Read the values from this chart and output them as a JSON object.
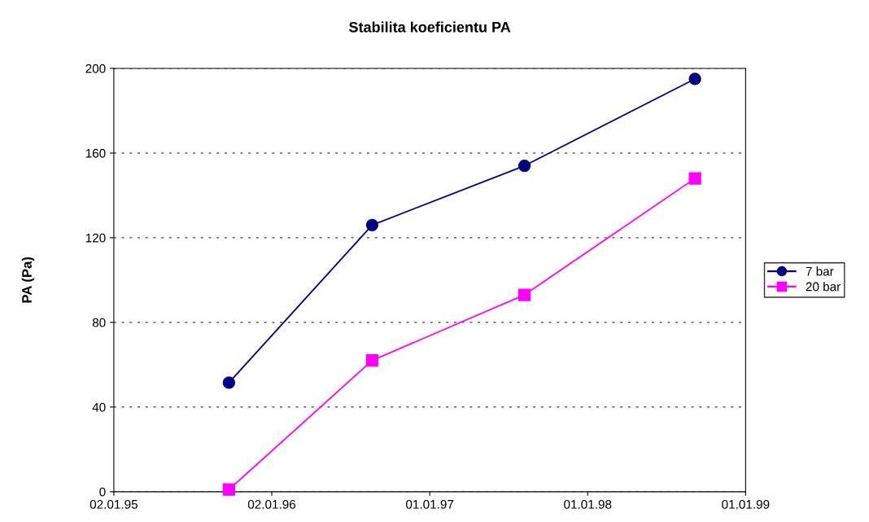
{
  "chart_data": {
    "type": "line",
    "title": "Stabilita koeficientu PA",
    "ylabel": "PA (Pa)",
    "x": [
      "1995-09-25",
      "1996-08-21",
      "1997-08-08",
      "1998-09-06"
    ],
    "series": [
      {
        "name": "7 bar",
        "color": "#000080",
        "marker": "circle",
        "values": [
          51.5,
          126,
          154,
          195
        ]
      },
      {
        "name": "20 bar",
        "color": "#ff00ff",
        "marker": "square",
        "values": [
          1,
          62,
          93,
          148
        ]
      }
    ],
    "xlim": [
      "1995-01-02",
      "1999-01-01"
    ],
    "xticks": [
      {
        "value": "1995-01-02",
        "label": "02.01.95"
      },
      {
        "value": "1996-01-02",
        "label": "02.01.96"
      },
      {
        "value": "1997-01-01",
        "label": "01.01.97"
      },
      {
        "value": "1998-01-01",
        "label": "01.01.98"
      },
      {
        "value": "1999-01-01",
        "label": "01.01.99"
      }
    ],
    "ylim": [
      0,
      200
    ],
    "yticks": [
      0,
      40,
      80,
      120,
      160,
      200
    ],
    "grid": "y",
    "legend": "right",
    "line_style": "solid"
  }
}
